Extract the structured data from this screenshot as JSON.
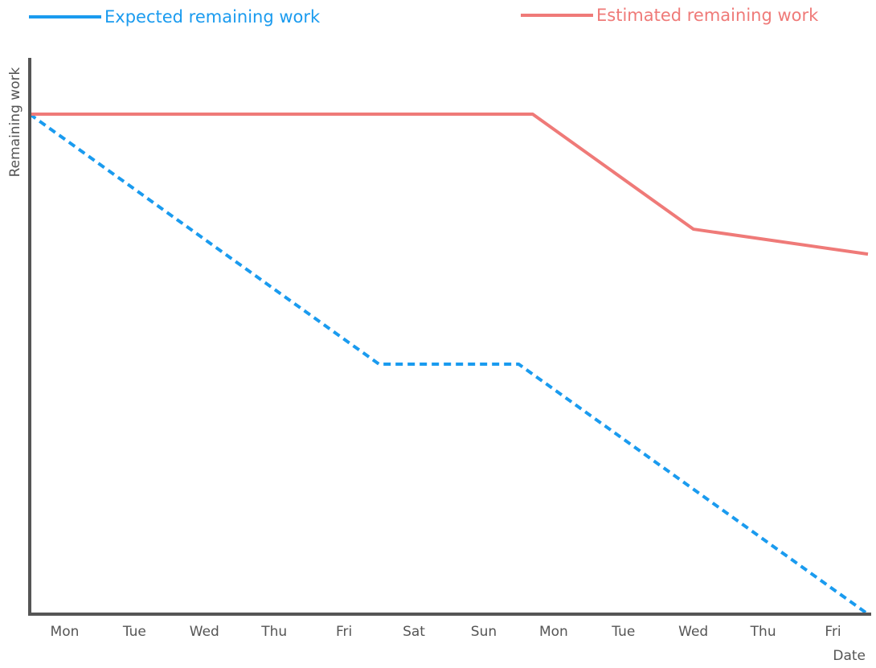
{
  "chart_data": {
    "type": "line",
    "title": "",
    "xlabel": "Date",
    "ylabel": "Remaining work",
    "categories": [
      "Mon",
      "Tue",
      "Wed",
      "Thu",
      "Fri",
      "Sat",
      "Sun",
      "Mon",
      "Tue",
      "Wed",
      "Thu",
      "Fri"
    ],
    "x": [
      0,
      1,
      2,
      3,
      4,
      5,
      6,
      7,
      8,
      9,
      10,
      11,
      12
    ],
    "ylim": [
      0,
      100
    ],
    "grid": false,
    "legend_position": "top",
    "series": [
      {
        "name": "Expected remaining work",
        "color": "#1a9bef",
        "style": "dashed",
        "points": [
          [
            0,
            100
          ],
          [
            5,
            50
          ],
          [
            7,
            50
          ],
          [
            12,
            0
          ]
        ]
      },
      {
        "name": "Estimated remaining work",
        "color": "#ef7a78",
        "style": "solid",
        "points": [
          [
            0,
            100
          ],
          [
            7.2,
            100
          ],
          [
            9.5,
            77
          ],
          [
            12,
            72
          ]
        ]
      }
    ]
  },
  "colors": {
    "axis": "#555555",
    "label": "#555555"
  }
}
